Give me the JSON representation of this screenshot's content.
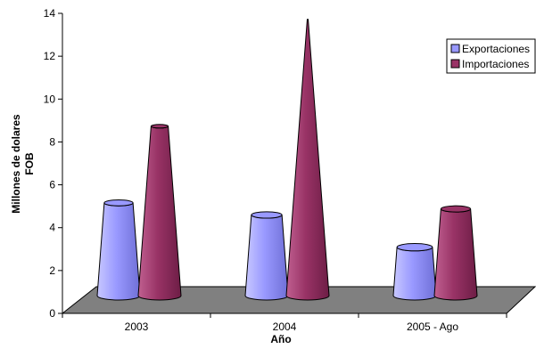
{
  "chart_data": {
    "type": "bar",
    "style": "3d-cone",
    "categories": [
      "2003",
      "2004",
      "2005 - Ago"
    ],
    "series": [
      {
        "name": "Exportaciones",
        "values": [
          4.6,
          4.0,
          2.4
        ],
        "color": "#9999ff"
      },
      {
        "name": "Importaciones",
        "values": [
          8.4,
          13.7,
          4.3
        ],
        "color": "#993366"
      }
    ],
    "xlabel": "Año",
    "ylabel_lines": [
      "Millones de dolares",
      "FOB"
    ],
    "ylim": [
      0,
      14
    ],
    "yticks": [
      "0",
      "2",
      "4",
      "6",
      "8",
      "10",
      "12",
      "14"
    ],
    "grid": false,
    "legend_position": "top-right",
    "floor_color": "#808080"
  }
}
